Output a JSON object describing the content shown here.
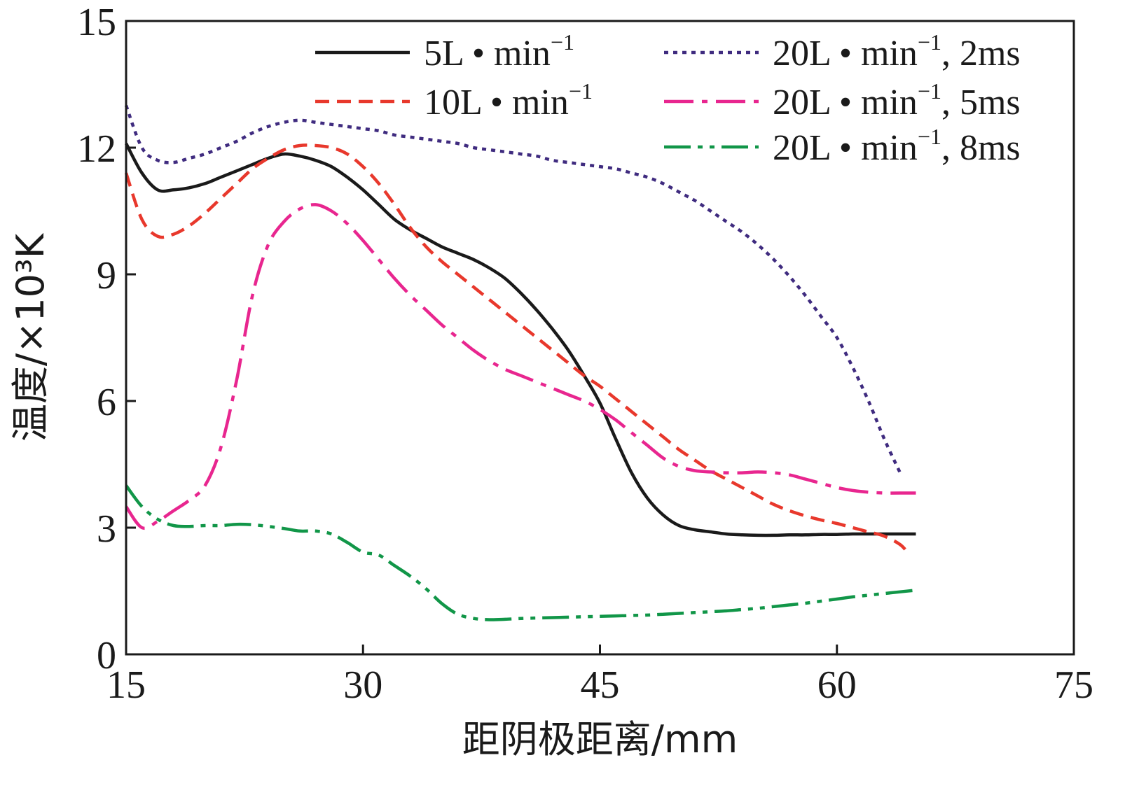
{
  "chart_data": {
    "type": "line",
    "title": "",
    "xlabel": "距阴极距离/mm",
    "ylabel": "温度/×10³K",
    "xlim": [
      15,
      75
    ],
    "ylim": [
      0,
      15
    ],
    "xticks": [
      15,
      30,
      45,
      60,
      75
    ],
    "yticks": [
      0,
      3,
      6,
      9,
      12,
      15
    ],
    "xtick_labels": [
      "15",
      "30",
      "45",
      "60",
      "75"
    ],
    "ytick_labels": [
      "0",
      "3",
      "6",
      "9",
      "12",
      "15"
    ],
    "grid": false,
    "legend_position": "top-right",
    "series": [
      {
        "name": "5L • min⁻¹",
        "legend": {
          "main": "5L • min",
          "sup": "−1",
          "suffix": ""
        },
        "color": "#1a1a1a",
        "dash": "solid",
        "x": [
          15,
          16,
          17,
          18,
          19,
          20,
          21,
          22,
          23,
          24,
          25,
          26,
          27,
          28,
          29,
          30,
          31,
          32,
          33,
          34,
          35,
          36,
          37,
          38,
          39,
          40,
          41,
          42,
          43,
          44,
          45,
          46,
          47,
          48,
          49,
          50,
          51,
          52,
          53,
          54,
          55,
          56,
          57,
          58,
          59,
          60,
          61,
          62,
          63,
          64,
          65
        ],
        "y": [
          12.1,
          11.4,
          11.0,
          11.0,
          11.05,
          11.15,
          11.3,
          11.45,
          11.6,
          11.75,
          11.85,
          11.8,
          11.7,
          11.55,
          11.3,
          11.0,
          10.65,
          10.3,
          10.05,
          9.85,
          9.65,
          9.5,
          9.35,
          9.15,
          8.9,
          8.55,
          8.15,
          7.7,
          7.2,
          6.6,
          5.95,
          5.1,
          4.3,
          3.7,
          3.3,
          3.05,
          2.95,
          2.9,
          2.85,
          2.83,
          2.82,
          2.82,
          2.83,
          2.83,
          2.84,
          2.84,
          2.85,
          2.85,
          2.85,
          2.85,
          2.85
        ]
      },
      {
        "name": "10L • min⁻¹",
        "legend": {
          "main": "10L • min",
          "sup": "−1",
          "suffix": ""
        },
        "color": "#e8382c",
        "dash": "dashed",
        "x": [
          15,
          16,
          17,
          18,
          19,
          20,
          21,
          22,
          23,
          24,
          25,
          26,
          27,
          28,
          29,
          30,
          31,
          32,
          33,
          34,
          35,
          36,
          37,
          38,
          39,
          40,
          41,
          42,
          43,
          44,
          45,
          46,
          47,
          48,
          49,
          50,
          51,
          52,
          53,
          54,
          55,
          56,
          57,
          58,
          59,
          60,
          61,
          62,
          63,
          64,
          64.5
        ],
        "y": [
          11.4,
          10.3,
          9.9,
          9.95,
          10.15,
          10.45,
          10.8,
          11.15,
          11.5,
          11.75,
          11.95,
          12.05,
          12.05,
          12.0,
          11.85,
          11.55,
          11.15,
          10.65,
          10.1,
          9.65,
          9.3,
          9.0,
          8.7,
          8.4,
          8.1,
          7.8,
          7.5,
          7.2,
          6.9,
          6.6,
          6.35,
          6.05,
          5.75,
          5.45,
          5.15,
          4.85,
          4.6,
          4.35,
          4.15,
          3.95,
          3.75,
          3.55,
          3.4,
          3.28,
          3.18,
          3.1,
          3.0,
          2.9,
          2.8,
          2.6,
          2.4
        ]
      },
      {
        "name": "20L • min⁻¹, 2ms",
        "legend": {
          "main": "20L • min",
          "sup": "−1",
          "suffix": ", 2ms"
        },
        "color": "#3f2b7f",
        "dash": "dotted",
        "x": [
          15,
          16,
          17,
          18,
          19,
          20,
          21,
          22,
          23,
          24,
          25,
          26,
          27,
          28,
          29,
          30,
          31,
          32,
          33,
          34,
          35,
          36,
          37,
          38,
          39,
          40,
          41,
          42,
          43,
          44,
          45,
          46,
          47,
          48,
          49,
          50,
          51,
          52,
          53,
          54,
          55,
          56,
          57,
          58,
          59,
          60,
          61,
          62,
          63,
          64
        ],
        "y": [
          13.0,
          12.0,
          11.7,
          11.65,
          11.75,
          11.85,
          12.0,
          12.15,
          12.35,
          12.5,
          12.6,
          12.65,
          12.6,
          12.55,
          12.5,
          12.45,
          12.4,
          12.3,
          12.25,
          12.2,
          12.15,
          12.1,
          12.0,
          11.95,
          11.9,
          11.85,
          11.8,
          11.7,
          11.65,
          11.6,
          11.55,
          11.5,
          11.4,
          11.3,
          11.15,
          10.95,
          10.75,
          10.5,
          10.25,
          10.0,
          9.7,
          9.35,
          8.95,
          8.5,
          8.0,
          7.5,
          6.8,
          6.0,
          5.1,
          4.3
        ]
      },
      {
        "name": "20L • min⁻¹, 5ms",
        "legend": {
          "main": "20L • min",
          "sup": "−1",
          "suffix": ", 5ms"
        },
        "color": "#e8268f",
        "dash": "dashdot",
        "x": [
          15,
          16,
          17,
          18,
          19,
          20,
          21,
          22,
          23,
          24,
          25,
          26,
          27,
          28,
          29,
          30,
          31,
          32,
          33,
          34,
          35,
          36,
          37,
          38,
          39,
          40,
          41,
          42,
          43,
          44,
          45,
          46,
          47,
          48,
          49,
          50,
          51,
          52,
          53,
          54,
          55,
          56,
          57,
          58,
          59,
          60,
          61,
          62,
          63,
          64,
          65
        ],
        "y": [
          3.5,
          3.0,
          3.15,
          3.4,
          3.65,
          4.0,
          4.9,
          6.5,
          8.5,
          9.7,
          10.25,
          10.55,
          10.65,
          10.5,
          10.2,
          9.8,
          9.35,
          8.9,
          8.5,
          8.15,
          7.8,
          7.5,
          7.2,
          6.95,
          6.75,
          6.6,
          6.45,
          6.3,
          6.15,
          6.0,
          5.8,
          5.55,
          5.25,
          4.95,
          4.65,
          4.45,
          4.35,
          4.32,
          4.3,
          4.3,
          4.32,
          4.3,
          4.25,
          4.15,
          4.05,
          3.95,
          3.88,
          3.84,
          3.82,
          3.82,
          3.82
        ]
      },
      {
        "name": "20L • min⁻¹, 8ms",
        "legend": {
          "main": "20L • min",
          "sup": "−1",
          "suffix": ", 8ms"
        },
        "color": "#119648",
        "dash": "dashdotdot",
        "x": [
          15,
          16,
          17,
          18,
          19,
          20,
          21,
          22,
          23,
          24,
          25,
          26,
          27,
          28,
          29,
          30,
          31,
          32,
          33,
          34,
          35,
          36,
          37,
          38,
          39,
          40,
          41,
          42,
          43,
          44,
          45,
          46,
          47,
          48,
          49,
          50,
          51,
          52,
          53,
          54,
          55,
          56,
          57,
          58,
          59,
          60,
          61,
          62,
          63,
          64,
          65
        ],
        "y": [
          4.0,
          3.5,
          3.2,
          3.05,
          3.03,
          3.05,
          3.05,
          3.08,
          3.07,
          3.03,
          2.98,
          2.92,
          2.92,
          2.85,
          2.65,
          2.42,
          2.35,
          2.1,
          1.85,
          1.55,
          1.2,
          0.95,
          0.85,
          0.82,
          0.83,
          0.85,
          0.86,
          0.87,
          0.88,
          0.89,
          0.9,
          0.91,
          0.92,
          0.93,
          0.95,
          0.97,
          0.99,
          1.01,
          1.03,
          1.06,
          1.09,
          1.13,
          1.17,
          1.21,
          1.26,
          1.31,
          1.36,
          1.4,
          1.44,
          1.48,
          1.52
        ]
      }
    ]
  }
}
